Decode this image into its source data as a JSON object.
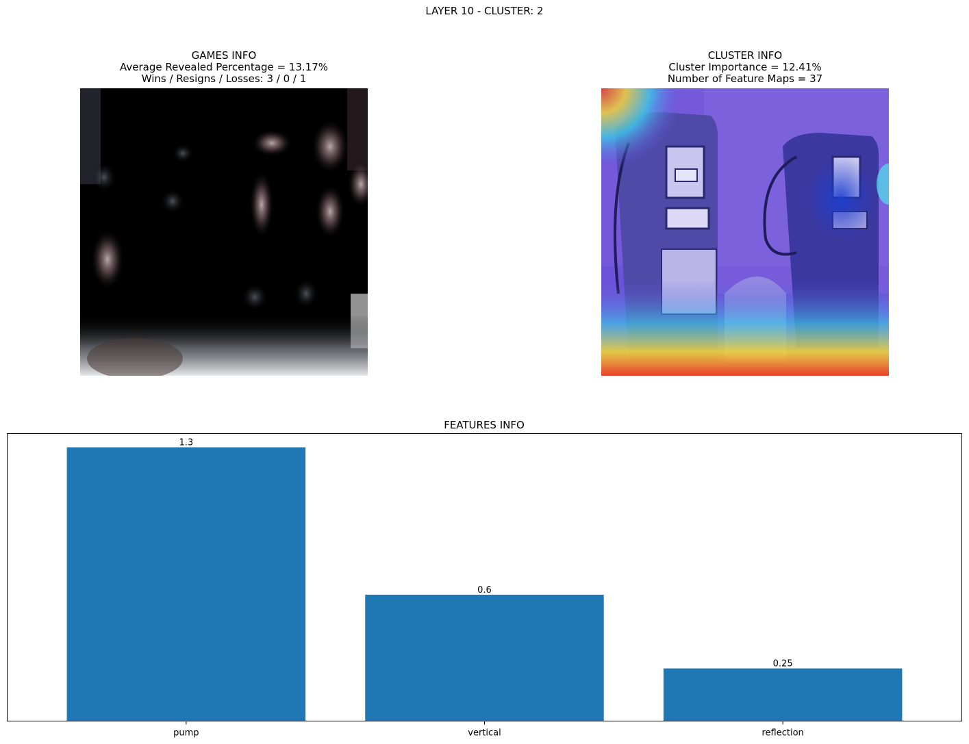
{
  "figure": {
    "suptitle": "LAYER 10 - CLUSTER: 2"
  },
  "games_panel": {
    "title": "GAMES INFO",
    "line1": "Average Revealed Percentage = 13.17%",
    "line2": "Wins / Resigns / Losses: 3 / 0 / 1"
  },
  "cluster_panel": {
    "title": "CLUSTER INFO",
    "line1": "Cluster Importance = 12.41%",
    "line2": "Number of Feature Maps = 37"
  },
  "colors": {
    "bar": "#1f77b4"
  },
  "chart_data": {
    "type": "bar",
    "title": "FEATURES INFO",
    "categories": [
      "pump",
      "vertical",
      "reflection"
    ],
    "values": [
      1.3,
      0.6,
      0.25
    ],
    "value_labels": [
      "1.3",
      "0.6",
      "0.25"
    ],
    "ylim": [
      0,
      1.365
    ],
    "yaxis_visible": false,
    "grid": false,
    "legend": "none"
  }
}
